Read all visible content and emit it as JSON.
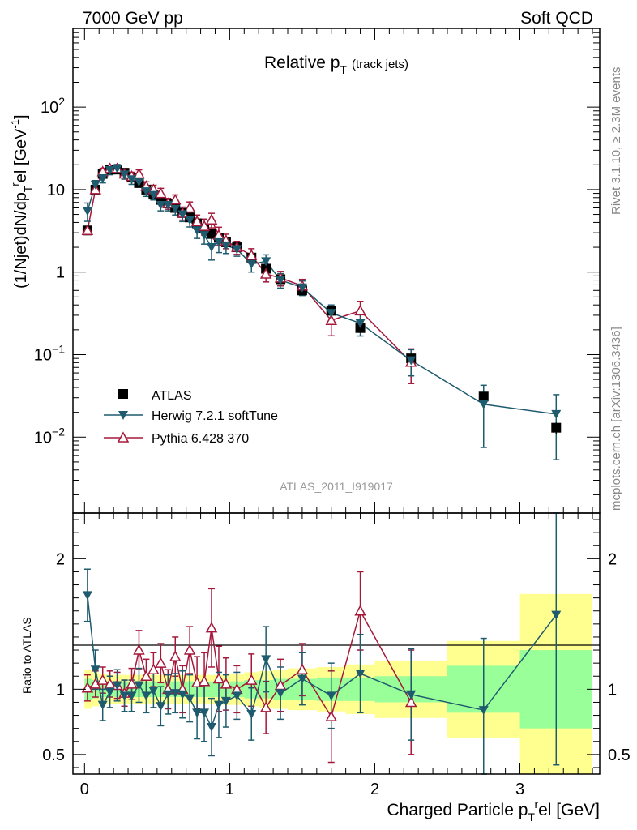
{
  "header": {
    "energy_label": "7000 GeV pp",
    "category_label": "Soft QCD"
  },
  "side_labels": {
    "rivet": "Rivet 3.1.10, ≥ 2.3M events",
    "source": "mcplots.cern.ch [arXiv:1306.3436]"
  },
  "colors": {
    "data": "#000000",
    "herwig": "#1f5b6e",
    "pythia": "#a5183a",
    "band_yellow": "#ffff90",
    "band_green": "#99ff99"
  },
  "chart_data": [
    {
      "type": "scatter",
      "title": "Relative p",
      "title_sub": "T",
      "title_suffix": "(track jets)",
      "analysis_label": "ATLAS_2011_I919017",
      "ylabel": "(1/Njet)dN/dp",
      "ylabel_sub": "T",
      "ylabel_sup": "r",
      "ylabel_tail": "el [GeV",
      "ylabel_unit_sup": "-1",
      "ylabel_close": "]",
      "yscale": "log",
      "xlim": [
        -0.08,
        3.55
      ],
      "ylim": [
        0.0012,
        900
      ],
      "ytick_labels": [
        {
          "value": 100,
          "base": "10",
          "exp": "2"
        },
        {
          "value": 10,
          "base": "10",
          "exp": ""
        },
        {
          "value": 1,
          "base": "1",
          "exp": ""
        },
        {
          "value": 0.1,
          "base": "10",
          "exp": "−1"
        },
        {
          "value": 0.01,
          "base": "10",
          "exp": "−2"
        }
      ],
      "legend": [
        {
          "key": "atlas",
          "label": "ATLAS"
        },
        {
          "key": "herwig",
          "label": "Herwig 7.2.1 softTune"
        },
        {
          "key": "pythia",
          "label": "Pythia 6.428 370"
        }
      ],
      "x": [
        0.02,
        0.075,
        0.125,
        0.175,
        0.225,
        0.275,
        0.325,
        0.375,
        0.425,
        0.475,
        0.525,
        0.575,
        0.625,
        0.675,
        0.725,
        0.775,
        0.825,
        0.875,
        0.925,
        0.975,
        1.05,
        1.15,
        1.25,
        1.35,
        1.5,
        1.7,
        1.9,
        2.25,
        2.75,
        3.25
      ],
      "atlas": [
        3.2,
        10,
        15.5,
        17.5,
        17.5,
        16,
        14,
        12,
        10,
        8.7,
        7.5,
        6.8,
        6,
        5.2,
        4.6,
        3.9,
        3.4,
        2.9,
        2.6,
        2.3,
        2.0,
        1.5,
        1.1,
        0.82,
        0.6,
        0.34,
        0.21,
        0.09,
        0.031,
        0.013
      ],
      "atlas_err": [
        0.3,
        0.8,
        1.2,
        1.3,
        1.3,
        1.2,
        1.1,
        1.0,
        0.8,
        0.7,
        0.6,
        0.5,
        0.5,
        0.4,
        0.4,
        0.3,
        0.3,
        0.3,
        0.25,
        0.2,
        0.15,
        0.1,
        0.08,
        0.06,
        0.05,
        0.03,
        0.02,
        0.008,
        0.004,
        0.002
      ],
      "herwig": [
        5.5,
        11.5,
        13.7,
        17.2,
        18,
        15.2,
        13.3,
        12.4,
        9.5,
        8.6,
        6.5,
        6.5,
        5.8,
        5.0,
        4.3,
        3.2,
        2.8,
        2.0,
        2.3,
        2.1,
        1.9,
        1.25,
        1.35,
        0.8,
        0.65,
        0.32,
        0.24,
        0.085,
        0.025,
        0.019
      ],
      "herwig_err_frac": [
        0.25,
        0.12,
        0.12,
        0.12,
        0.12,
        0.12,
        0.13,
        0.13,
        0.13,
        0.13,
        0.15,
        0.15,
        0.15,
        0.18,
        0.18,
        0.2,
        0.22,
        0.3,
        0.25,
        0.2,
        0.18,
        0.2,
        0.2,
        0.2,
        0.2,
        0.25,
        0.3,
        0.35,
        0.7,
        0.72
      ],
      "pythia": [
        3.2,
        10,
        16.5,
        18,
        18,
        15.5,
        14.5,
        15.5,
        11,
        10,
        9,
        6.8,
        7.5,
        5.2,
        6,
        4.1,
        3.6,
        4.3,
        2.8,
        2.4,
        2.0,
        1.6,
        0.95,
        0.85,
        0.68,
        0.26,
        0.34,
        0.081,
        null,
        null
      ],
      "pythia_err_frac": [
        0.1,
        0.1,
        0.1,
        0.1,
        0.1,
        0.1,
        0.12,
        0.12,
        0.13,
        0.13,
        0.15,
        0.15,
        0.15,
        0.18,
        0.18,
        0.2,
        0.22,
        0.2,
        0.25,
        0.2,
        0.18,
        0.2,
        0.2,
        0.2,
        0.2,
        0.35,
        0.3,
        0.45,
        null,
        null
      ]
    },
    {
      "type": "scatter",
      "ylabel": "Ratio to ATLAS",
      "xlabel": "Charged Particle p",
      "xlabel_sub": "T",
      "xlabel_sup": "r",
      "xlabel_tail": "el [GeV]",
      "ylim": [
        0.35,
        2.35
      ],
      "xlim": [
        -0.08,
        3.55
      ],
      "ytick_labels": [
        {
          "value": 2,
          "label": "2"
        },
        {
          "value": 1,
          "label": "1"
        },
        {
          "value": 0.5,
          "label": "0.5"
        }
      ],
      "xtick_labels": [
        {
          "value": 0,
          "label": "0"
        },
        {
          "value": 1,
          "label": "1"
        },
        {
          "value": 2,
          "label": "2"
        },
        {
          "value": 3,
          "label": "3"
        }
      ],
      "band_edges": [
        0,
        0.05,
        0.1,
        0.15,
        0.2,
        0.25,
        0.3,
        0.35,
        0.4,
        0.45,
        0.5,
        0.55,
        0.6,
        0.65,
        0.7,
        0.75,
        0.8,
        0.85,
        0.9,
        0.95,
        1.0,
        1.1,
        1.2,
        1.3,
        1.4,
        1.6,
        1.8,
        2.0,
        2.5,
        3.0,
        3.5
      ],
      "band_green": [
        0.08,
        0.07,
        0.06,
        0.06,
        0.06,
        0.06,
        0.06,
        0.06,
        0.06,
        0.06,
        0.06,
        0.06,
        0.06,
        0.06,
        0.06,
        0.06,
        0.06,
        0.06,
        0.06,
        0.06,
        0.06,
        0.07,
        0.07,
        0.08,
        0.08,
        0.09,
        0.09,
        0.1,
        0.18,
        0.3
      ],
      "band_yellow": [
        0.15,
        0.13,
        0.12,
        0.11,
        0.11,
        0.11,
        0.11,
        0.11,
        0.11,
        0.11,
        0.11,
        0.11,
        0.11,
        0.11,
        0.11,
        0.11,
        0.11,
        0.11,
        0.11,
        0.12,
        0.12,
        0.13,
        0.14,
        0.15,
        0.16,
        0.17,
        0.19,
        0.22,
        0.37,
        0.73
      ],
      "herwig_ratio": [
        1.72,
        1.15,
        0.88,
        0.98,
        1.03,
        0.95,
        0.95,
        1.03,
        0.95,
        0.99,
        0.87,
        0.96,
        0.97,
        0.96,
        0.93,
        0.82,
        0.82,
        0.71,
        0.88,
        0.91,
        0.95,
        0.81,
        1.23,
        0.97,
        1.08,
        0.95,
        1.12,
        0.96,
        0.84,
        1.57
      ],
      "herwig_ratio_err": [
        0.2,
        0.15,
        0.12,
        0.12,
        0.12,
        0.12,
        0.12,
        0.13,
        0.13,
        0.13,
        0.15,
        0.15,
        0.15,
        0.18,
        0.18,
        0.2,
        0.22,
        0.22,
        0.25,
        0.2,
        0.18,
        0.2,
        0.25,
        0.2,
        0.2,
        0.25,
        0.3,
        0.35,
        0.55,
        1.15
      ],
      "pythia_ratio": [
        1.01,
        1.04,
        1.07,
        1.04,
        1.03,
        0.97,
        1.04,
        1.3,
        1.1,
        1.15,
        1.2,
        1.0,
        1.25,
        1.0,
        1.3,
        1.05,
        1.06,
        1.47,
        1.08,
        1.04,
        1.0,
        1.07,
        0.86,
        1.03,
        1.15,
        0.79,
        1.6,
        0.9,
        null,
        null
      ],
      "pythia_ratio_err": [
        0.1,
        0.1,
        0.1,
        0.1,
        0.1,
        0.1,
        0.12,
        0.15,
        0.13,
        0.13,
        0.15,
        0.15,
        0.15,
        0.18,
        0.18,
        0.2,
        0.22,
        0.3,
        0.25,
        0.2,
        0.18,
        0.2,
        0.2,
        0.2,
        0.2,
        0.35,
        0.3,
        0.4,
        null,
        null
      ]
    }
  ]
}
